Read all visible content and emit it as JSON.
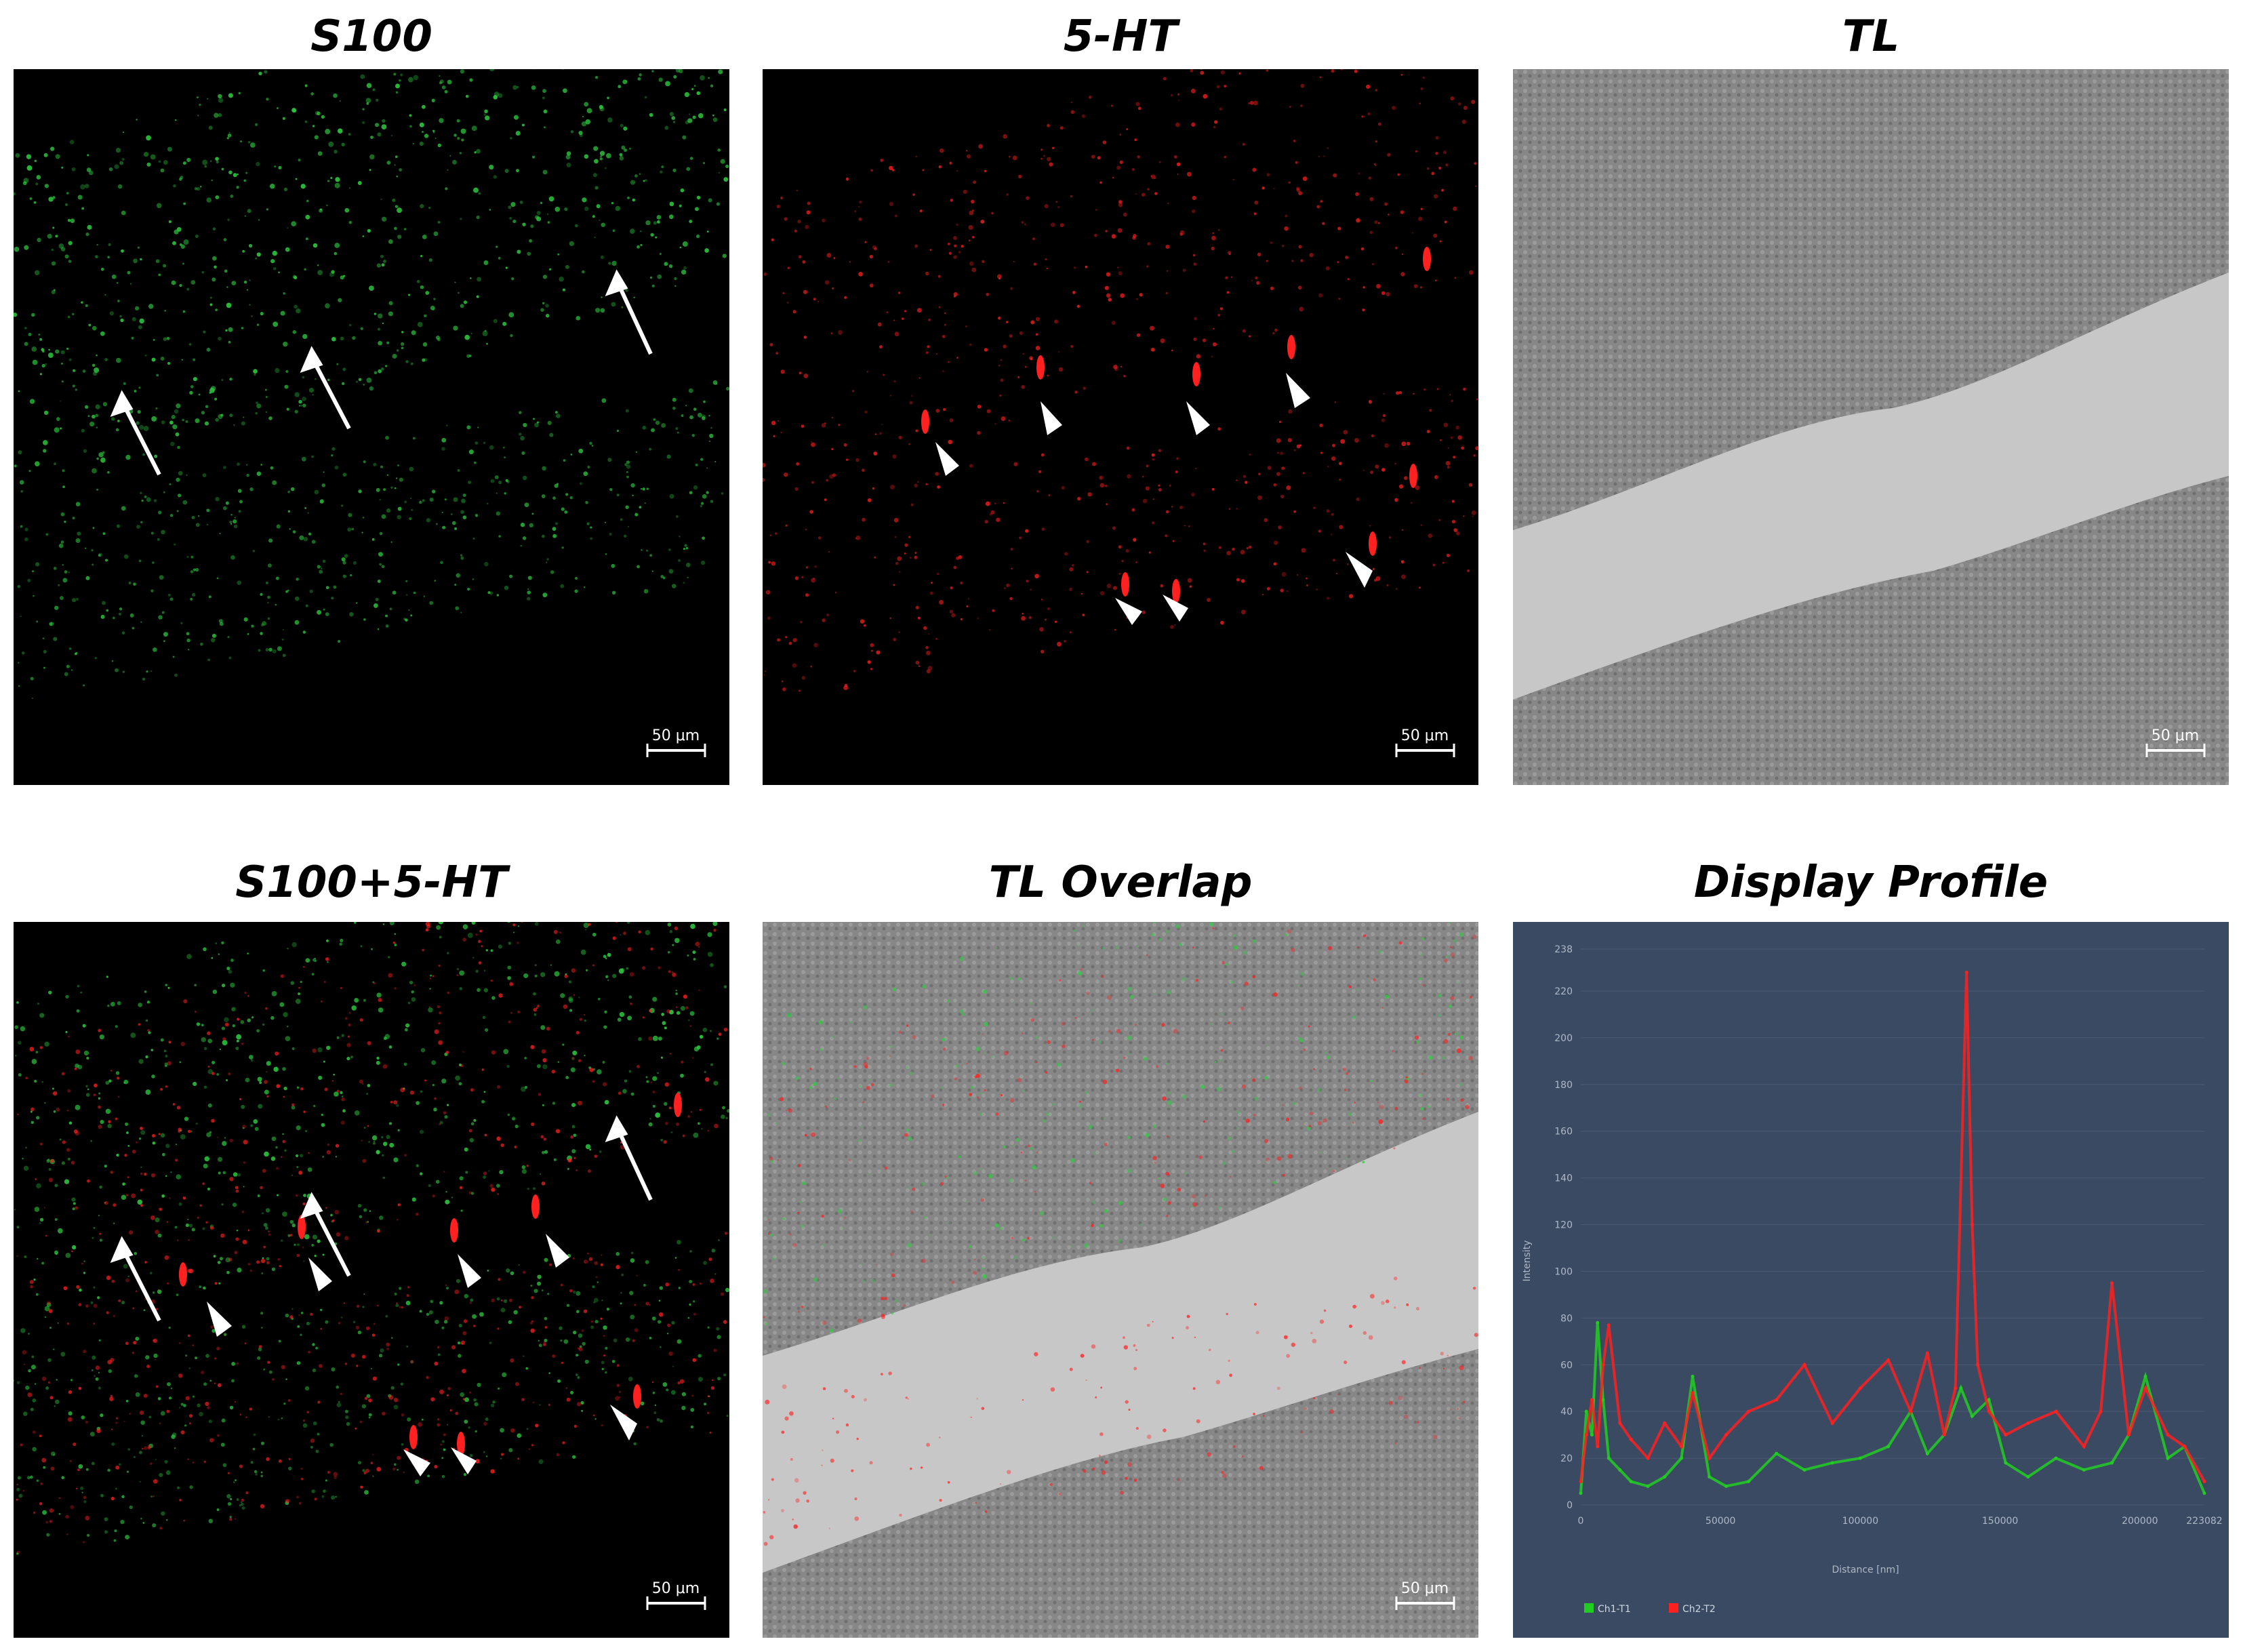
{
  "panels": [
    {
      "title": "S100",
      "scale_bar": "50 μm"
    },
    {
      "title": "5-HT",
      "scale_bar": "50 μm"
    },
    {
      "title": "TL",
      "scale_bar": "50 μm"
    },
    {
      "title": "S100+5-HT",
      "scale_bar": "50 μm"
    },
    {
      "title": "TL Overlap",
      "scale_bar": "50 μm"
    },
    {
      "title": "Display Profile"
    }
  ],
  "colors": {
    "s100_signal": "#2ecc40",
    "ht5_signal": "#ff2020",
    "profile_background": "#3b4a63"
  },
  "icons": [
    "arrow-icon",
    "arrowhead-icon"
  ],
  "chart_data": {
    "type": "line",
    "xlabel": "Distance [nm]",
    "ylabel": "Intensity",
    "xlim": [
      0,
      223082
    ],
    "ylim": [
      0,
      238
    ],
    "x_ticks": [
      "0",
      "50000",
      "100000",
      "150000",
      "200000",
      "223082"
    ],
    "y_ticks": [
      "0",
      "20",
      "40",
      "60",
      "80",
      "100",
      "120",
      "140",
      "160",
      "180",
      "200",
      "220",
      "238"
    ],
    "legend": "bottom-left",
    "series": [
      {
        "name": "Ch1-T1",
        "color": "#22cc22",
        "x": [
          0,
          2000,
          4000,
          6000,
          8000,
          10000,
          14000,
          18000,
          24000,
          30000,
          36000,
          40000,
          46000,
          52000,
          60000,
          70000,
          80000,
          90000,
          100000,
          110000,
          118000,
          124000,
          130000,
          136000,
          140000,
          146000,
          152000,
          160000,
          170000,
          180000,
          190000,
          196000,
          202000,
          210000,
          216000,
          223082
        ],
        "values": [
          5,
          40,
          30,
          78,
          45,
          20,
          15,
          10,
          8,
          12,
          20,
          55,
          12,
          8,
          10,
          22,
          15,
          18,
          20,
          25,
          40,
          22,
          30,
          50,
          38,
          45,
          18,
          12,
          20,
          15,
          18,
          30,
          55,
          20,
          25,
          5
        ]
      },
      {
        "name": "Ch2-T2",
        "color": "#ff2020",
        "x": [
          0,
          2000,
          4000,
          6000,
          8000,
          10000,
          14000,
          18000,
          24000,
          30000,
          36000,
          40000,
          46000,
          52000,
          60000,
          70000,
          80000,
          90000,
          100000,
          110000,
          118000,
          124000,
          130000,
          134000,
          138000,
          140000,
          142000,
          146000,
          152000,
          160000,
          170000,
          180000,
          186000,
          190000,
          196000,
          202000,
          210000,
          216000,
          223082
        ],
        "values": [
          10,
          30,
          45,
          25,
          60,
          77,
          35,
          28,
          20,
          35,
          25,
          48,
          20,
          30,
          40,
          45,
          60,
          35,
          50,
          62,
          40,
          65,
          30,
          50,
          228,
          120,
          60,
          40,
          30,
          35,
          40,
          25,
          40,
          95,
          30,
          50,
          30,
          25,
          10
        ]
      }
    ]
  }
}
